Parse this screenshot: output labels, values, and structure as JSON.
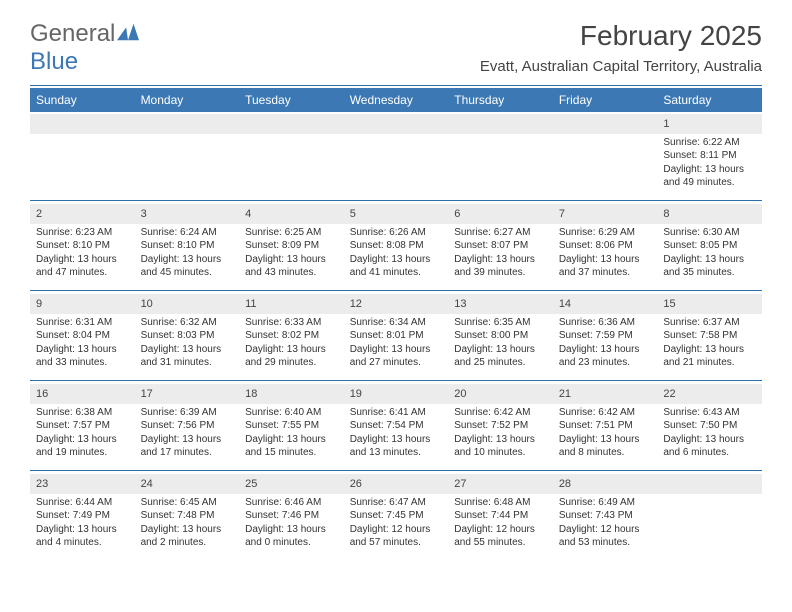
{
  "logo": {
    "text1": "General",
    "text2": "Blue"
  },
  "title": "February 2025",
  "location": "Evatt, Australian Capital Territory, Australia",
  "colors": {
    "header_bg": "#3c78b4",
    "divider": "#2f6fa8",
    "daynum_bg": "#ececec",
    "text": "#333333",
    "background": "#ffffff"
  },
  "day_headers": [
    "Sunday",
    "Monday",
    "Tuesday",
    "Wednesday",
    "Thursday",
    "Friday",
    "Saturday"
  ],
  "weeks": [
    [
      null,
      null,
      null,
      null,
      null,
      null,
      {
        "n": "1",
        "sr": "Sunrise: 6:22 AM",
        "ss": "Sunset: 8:11 PM",
        "dl": "Daylight: 13 hours and 49 minutes."
      }
    ],
    [
      {
        "n": "2",
        "sr": "Sunrise: 6:23 AM",
        "ss": "Sunset: 8:10 PM",
        "dl": "Daylight: 13 hours and 47 minutes."
      },
      {
        "n": "3",
        "sr": "Sunrise: 6:24 AM",
        "ss": "Sunset: 8:10 PM",
        "dl": "Daylight: 13 hours and 45 minutes."
      },
      {
        "n": "4",
        "sr": "Sunrise: 6:25 AM",
        "ss": "Sunset: 8:09 PM",
        "dl": "Daylight: 13 hours and 43 minutes."
      },
      {
        "n": "5",
        "sr": "Sunrise: 6:26 AM",
        "ss": "Sunset: 8:08 PM",
        "dl": "Daylight: 13 hours and 41 minutes."
      },
      {
        "n": "6",
        "sr": "Sunrise: 6:27 AM",
        "ss": "Sunset: 8:07 PM",
        "dl": "Daylight: 13 hours and 39 minutes."
      },
      {
        "n": "7",
        "sr": "Sunrise: 6:29 AM",
        "ss": "Sunset: 8:06 PM",
        "dl": "Daylight: 13 hours and 37 minutes."
      },
      {
        "n": "8",
        "sr": "Sunrise: 6:30 AM",
        "ss": "Sunset: 8:05 PM",
        "dl": "Daylight: 13 hours and 35 minutes."
      }
    ],
    [
      {
        "n": "9",
        "sr": "Sunrise: 6:31 AM",
        "ss": "Sunset: 8:04 PM",
        "dl": "Daylight: 13 hours and 33 minutes."
      },
      {
        "n": "10",
        "sr": "Sunrise: 6:32 AM",
        "ss": "Sunset: 8:03 PM",
        "dl": "Daylight: 13 hours and 31 minutes."
      },
      {
        "n": "11",
        "sr": "Sunrise: 6:33 AM",
        "ss": "Sunset: 8:02 PM",
        "dl": "Daylight: 13 hours and 29 minutes."
      },
      {
        "n": "12",
        "sr": "Sunrise: 6:34 AM",
        "ss": "Sunset: 8:01 PM",
        "dl": "Daylight: 13 hours and 27 minutes."
      },
      {
        "n": "13",
        "sr": "Sunrise: 6:35 AM",
        "ss": "Sunset: 8:00 PM",
        "dl": "Daylight: 13 hours and 25 minutes."
      },
      {
        "n": "14",
        "sr": "Sunrise: 6:36 AM",
        "ss": "Sunset: 7:59 PM",
        "dl": "Daylight: 13 hours and 23 minutes."
      },
      {
        "n": "15",
        "sr": "Sunrise: 6:37 AM",
        "ss": "Sunset: 7:58 PM",
        "dl": "Daylight: 13 hours and 21 minutes."
      }
    ],
    [
      {
        "n": "16",
        "sr": "Sunrise: 6:38 AM",
        "ss": "Sunset: 7:57 PM",
        "dl": "Daylight: 13 hours and 19 minutes."
      },
      {
        "n": "17",
        "sr": "Sunrise: 6:39 AM",
        "ss": "Sunset: 7:56 PM",
        "dl": "Daylight: 13 hours and 17 minutes."
      },
      {
        "n": "18",
        "sr": "Sunrise: 6:40 AM",
        "ss": "Sunset: 7:55 PM",
        "dl": "Daylight: 13 hours and 15 minutes."
      },
      {
        "n": "19",
        "sr": "Sunrise: 6:41 AM",
        "ss": "Sunset: 7:54 PM",
        "dl": "Daylight: 13 hours and 13 minutes."
      },
      {
        "n": "20",
        "sr": "Sunrise: 6:42 AM",
        "ss": "Sunset: 7:52 PM",
        "dl": "Daylight: 13 hours and 10 minutes."
      },
      {
        "n": "21",
        "sr": "Sunrise: 6:42 AM",
        "ss": "Sunset: 7:51 PM",
        "dl": "Daylight: 13 hours and 8 minutes."
      },
      {
        "n": "22",
        "sr": "Sunrise: 6:43 AM",
        "ss": "Sunset: 7:50 PM",
        "dl": "Daylight: 13 hours and 6 minutes."
      }
    ],
    [
      {
        "n": "23",
        "sr": "Sunrise: 6:44 AM",
        "ss": "Sunset: 7:49 PM",
        "dl": "Daylight: 13 hours and 4 minutes."
      },
      {
        "n": "24",
        "sr": "Sunrise: 6:45 AM",
        "ss": "Sunset: 7:48 PM",
        "dl": "Daylight: 13 hours and 2 minutes."
      },
      {
        "n": "25",
        "sr": "Sunrise: 6:46 AM",
        "ss": "Sunset: 7:46 PM",
        "dl": "Daylight: 13 hours and 0 minutes."
      },
      {
        "n": "26",
        "sr": "Sunrise: 6:47 AM",
        "ss": "Sunset: 7:45 PM",
        "dl": "Daylight: 12 hours and 57 minutes."
      },
      {
        "n": "27",
        "sr": "Sunrise: 6:48 AM",
        "ss": "Sunset: 7:44 PM",
        "dl": "Daylight: 12 hours and 55 minutes."
      },
      {
        "n": "28",
        "sr": "Sunrise: 6:49 AM",
        "ss": "Sunset: 7:43 PM",
        "dl": "Daylight: 12 hours and 53 minutes."
      },
      null
    ]
  ]
}
